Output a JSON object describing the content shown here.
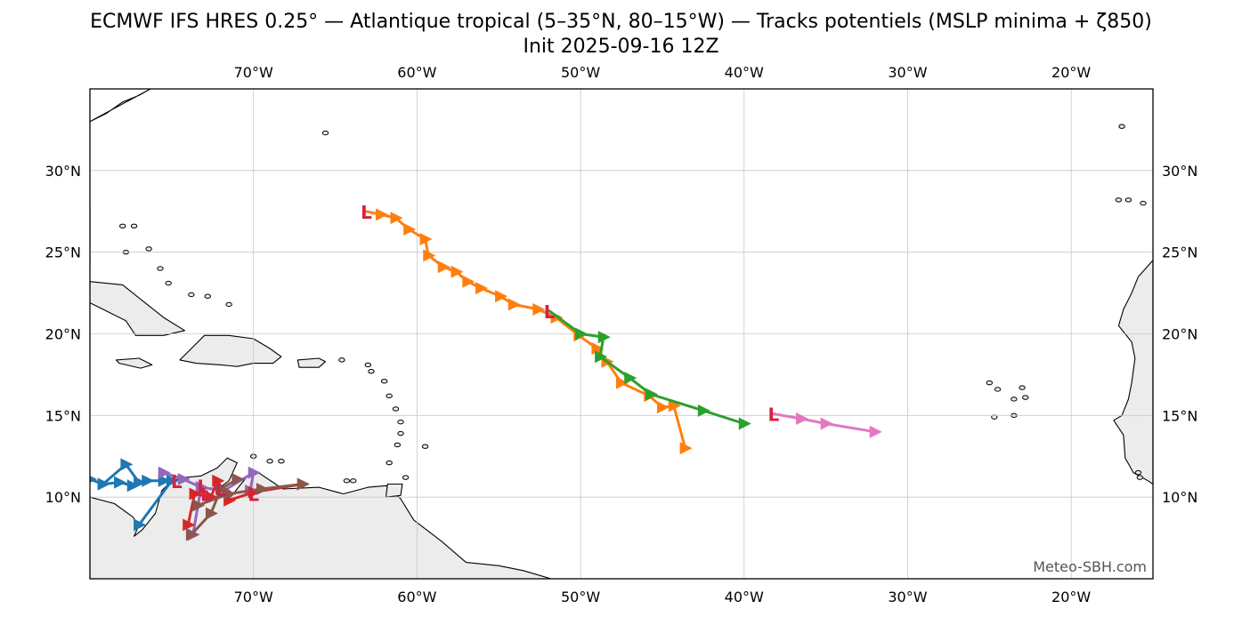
{
  "title_line1": "ECMWF IFS HRES 0.25° — Atlantique tropical (5–35°N, 80–15°W) — Tracks potentiels (MSLP minima + ζ850)",
  "title_line2": "Init 2025-09-16 12Z",
  "watermark": "Meteo-SBH.com",
  "low_marker_label": "L",
  "colors": {
    "background": "#ffffff",
    "land": "#ececec",
    "coast": "#000000",
    "grid": "#c8c8c8",
    "low_marker": "#d62040"
  },
  "map": {
    "lon_range": [
      -80,
      -15
    ],
    "lat_range": [
      5,
      35
    ],
    "lon_ticks": [
      {
        "lon": -70,
        "label": "70°W"
      },
      {
        "lon": -60,
        "label": "60°W"
      },
      {
        "lon": -50,
        "label": "50°W"
      },
      {
        "lon": -40,
        "label": "40°W"
      },
      {
        "lon": -30,
        "label": "30°W"
      },
      {
        "lon": -20,
        "label": "20°W"
      }
    ],
    "lat_ticks": [
      {
        "lat": 30,
        "label": "30°N"
      },
      {
        "lat": 25,
        "label": "25°N"
      },
      {
        "lat": 20,
        "label": "20°N"
      },
      {
        "lat": 15,
        "label": "15°N"
      },
      {
        "lat": 10,
        "label": "10°N"
      }
    ],
    "grid": true
  },
  "tracks": [
    {
      "color": "#ff7f0e",
      "marker": "L-start",
      "points": [
        [
          -63.1,
          27.5
        ],
        [
          -62.2,
          27.3
        ],
        [
          -61.3,
          27.1
        ],
        [
          -60.5,
          26.4
        ],
        [
          -59.5,
          25.8
        ],
        [
          -59.3,
          24.8
        ],
        [
          -58.4,
          24.1
        ],
        [
          -57.6,
          23.8
        ],
        [
          -56.9,
          23.2
        ],
        [
          -56.1,
          22.8
        ],
        [
          -54.9,
          22.3
        ],
        [
          -54.1,
          21.8
        ],
        [
          -52.6,
          21.5
        ],
        [
          -51.5,
          21.0
        ],
        [
          -50.1,
          19.9
        ],
        [
          -49.0,
          19.1
        ],
        [
          -48.4,
          18.3
        ],
        [
          -47.5,
          17.0
        ],
        [
          -45.8,
          16.2
        ],
        [
          -45.0,
          15.5
        ],
        [
          -44.3,
          15.6
        ],
        [
          -43.6,
          13.0
        ]
      ]
    },
    {
      "color": "#2ca02c",
      "marker": "L-start",
      "points": [
        [
          -51.9,
          21.4
        ],
        [
          -50.0,
          20.0
        ],
        [
          -48.6,
          19.8
        ],
        [
          -48.8,
          18.6
        ],
        [
          -47.0,
          17.3
        ],
        [
          -45.7,
          16.3
        ],
        [
          -42.5,
          15.3
        ],
        [
          -40.0,
          14.5
        ]
      ]
    },
    {
      "color": "#e377c2",
      "marker": "L-start",
      "points": [
        [
          -38.2,
          15.1
        ],
        [
          -36.5,
          14.8
        ],
        [
          -35.0,
          14.5
        ],
        [
          -32.0,
          14.0
        ]
      ]
    },
    {
      "color": "#1f77b4",
      "marker": "none",
      "points": [
        [
          -80.0,
          11.1
        ],
        [
          -79.2,
          10.8
        ],
        [
          -78.2,
          10.9
        ],
        [
          -77.4,
          10.7
        ],
        [
          -76.5,
          11.0
        ],
        [
          -75.5,
          11.0
        ],
        [
          -75.0,
          11.0
        ],
        [
          -77.0,
          8.3
        ]
      ]
    },
    {
      "color": "#1f77b4",
      "marker": "none",
      "points": [
        [
          -79.2,
          10.8
        ],
        [
          -77.8,
          12.0
        ],
        [
          -77.0,
          10.9
        ]
      ]
    },
    {
      "color": "#9467bd",
      "marker": "none",
      "points": [
        [
          -75.5,
          11.5
        ],
        [
          -74.3,
          11.1
        ],
        [
          -73.2,
          10.6
        ],
        [
          -71.8,
          10.4
        ],
        [
          -70.0,
          11.5
        ],
        [
          -70.2,
          10.4
        ]
      ]
    },
    {
      "color": "#9467bd",
      "marker": "none",
      "points": [
        [
          -73.2,
          10.6
        ],
        [
          -73.7,
          7.7
        ]
      ]
    },
    {
      "color": "#d62728",
      "marker": "none",
      "points": [
        [
          -74.0,
          8.3
        ],
        [
          -73.6,
          10.2
        ],
        [
          -72.6,
          10.0
        ],
        [
          -72.2,
          11.0
        ],
        [
          -71.5,
          9.8
        ],
        [
          -70.0,
          10.3
        ],
        [
          -67.0,
          10.8
        ]
      ]
    },
    {
      "color": "#8c564b",
      "marker": "none",
      "points": [
        [
          -73.8,
          7.7
        ],
        [
          -72.6,
          9.0
        ],
        [
          -72.0,
          10.5
        ],
        [
          -71.0,
          11.1
        ]
      ]
    },
    {
      "color": "#8c564b",
      "marker": "none",
      "points": [
        [
          -73.4,
          9.5
        ],
        [
          -71.5,
          10.2
        ],
        [
          -69.5,
          10.5
        ],
        [
          -67.0,
          10.8
        ]
      ]
    }
  ],
  "extra_lows": [
    [
      -74.7,
      11.0
    ],
    [
      -73.1,
      10.7
    ],
    [
      -72.0,
      10.5
    ],
    [
      -72.9,
      10.2
    ],
    [
      -70.0,
      10.2
    ]
  ],
  "landmasses": [
    [
      [
        -80,
        33
      ],
      [
        -79,
        33.5
      ],
      [
        -78,
        34.2
      ],
      [
        -77,
        34.6
      ],
      [
        -76.3,
        35
      ]
    ],
    [
      [
        -80,
        24.0
      ],
      [
        -80,
        28.0
      ],
      [
        -80.3,
        28.5
      ],
      [
        -80.1,
        26.0
      ],
      [
        -80.4,
        25.2
      ],
      [
        -80.8,
        25.1
      ],
      [
        -81.2,
        25.7
      ],
      [
        -80,
        24.0
      ]
    ],
    [
      [
        -80,
        23.2
      ],
      [
        -78,
        23.0
      ],
      [
        -76.5,
        21.8
      ],
      [
        -75.5,
        21.0
      ],
      [
        -74.2,
        20.2
      ],
      [
        -75.5,
        19.9
      ],
      [
        -77.2,
        19.9
      ],
      [
        -77.8,
        20.8
      ],
      [
        -79.2,
        21.5
      ],
      [
        -80,
        21.9
      ]
    ],
    [
      [
        -78.4,
        18.4
      ],
      [
        -77.0,
        18.5
      ],
      [
        -76.2,
        18.1
      ],
      [
        -76.9,
        17.9
      ],
      [
        -78.2,
        18.2
      ]
    ],
    [
      [
        -74.5,
        18.4
      ],
      [
        -73.0,
        19.9
      ],
      [
        -72.6,
        19.9
      ],
      [
        -71.5,
        19.9
      ],
      [
        -70.0,
        19.7
      ],
      [
        -69.0,
        19.1
      ],
      [
        -68.3,
        18.6
      ],
      [
        -68.8,
        18.2
      ],
      [
        -70.0,
        18.2
      ],
      [
        -71.0,
        18.0
      ],
      [
        -72.0,
        18.1
      ],
      [
        -73.5,
        18.2
      ],
      [
        -74.5,
        18.4
      ]
    ],
    [
      [
        -67.3,
        18.4
      ],
      [
        -66,
        18.5
      ],
      [
        -65.6,
        18.3
      ],
      [
        -66,
        17.95
      ],
      [
        -67.2,
        17.95
      ]
    ],
    [
      [
        -80,
        10.0
      ],
      [
        -78.5,
        9.6
      ],
      [
        -77.4,
        8.8
      ],
      [
        -77.0,
        8.3
      ],
      [
        -77.3,
        7.6
      ],
      [
        -76.8,
        8.0
      ],
      [
        -76.0,
        9.0
      ],
      [
        -75.6,
        10.4
      ],
      [
        -75.0,
        11.0
      ],
      [
        -74.2,
        11.2
      ],
      [
        -73.2,
        11.3
      ],
      [
        -72.2,
        11.8
      ],
      [
        -71.6,
        12.4
      ],
      [
        -71.0,
        12.1
      ],
      [
        -71.5,
        11.0
      ],
      [
        -71.9,
        10.7
      ],
      [
        -71.4,
        10.0
      ],
      [
        -71.0,
        10.5
      ],
      [
        -70.2,
        11.5
      ],
      [
        -69.7,
        11.5
      ],
      [
        -68.2,
        10.5
      ],
      [
        -66.0,
        10.6
      ],
      [
        -64.5,
        10.2
      ],
      [
        -63.0,
        10.6
      ],
      [
        -61.9,
        10.7
      ],
      [
        -61.0,
        9.9
      ],
      [
        -60.2,
        8.6
      ],
      [
        -58.5,
        7.3
      ],
      [
        -57.0,
        6.0
      ],
      [
        -55.0,
        5.8
      ],
      [
        -53.5,
        5.5
      ],
      [
        -51.8,
        5.0
      ],
      [
        -65,
        5.0
      ],
      [
        -80,
        5.0
      ]
    ],
    [
      [
        -61.9,
        10.0
      ],
      [
        -61.0,
        10.1
      ],
      [
        -60.9,
        10.8
      ],
      [
        -61.8,
        10.8
      ]
    ],
    [
      [
        -15,
        24.5
      ],
      [
        -15.9,
        23.5
      ],
      [
        -16.3,
        22.5
      ],
      [
        -16.8,
        21.5
      ],
      [
        -17.1,
        20.5
      ],
      [
        -16.3,
        19.5
      ],
      [
        -16.1,
        18.5
      ],
      [
        -16.3,
        17.0
      ],
      [
        -16.5,
        16.0
      ],
      [
        -16.9,
        15.0
      ],
      [
        -17.4,
        14.7
      ],
      [
        -16.8,
        13.8
      ],
      [
        -16.7,
        12.4
      ],
      [
        -16.2,
        11.5
      ],
      [
        -15.3,
        11.0
      ],
      [
        -15,
        10.8
      ]
    ]
  ],
  "islands": [
    [
      -65.6,
      32.3
    ],
    [
      -78.0,
      26.6
    ],
    [
      -77.3,
      26.6
    ],
    [
      -77.8,
      25.0
    ],
    [
      -76.4,
      25.2
    ],
    [
      -75.7,
      24.0
    ],
    [
      -75.2,
      23.1
    ],
    [
      -73.8,
      22.4
    ],
    [
      -72.8,
      22.3
    ],
    [
      -71.5,
      21.8
    ],
    [
      -64.6,
      18.4
    ],
    [
      -63.0,
      18.1
    ],
    [
      -62.8,
      17.7
    ],
    [
      -62.0,
      17.1
    ],
    [
      -61.7,
      16.2
    ],
    [
      -61.3,
      15.4
    ],
    [
      -61.0,
      14.6
    ],
    [
      -61.0,
      13.9
    ],
    [
      -61.2,
      13.2
    ],
    [
      -59.5,
      13.1
    ],
    [
      -61.7,
      12.1
    ],
    [
      -60.7,
      11.2
    ],
    [
      -70.0,
      12.5
    ],
    [
      -69.0,
      12.2
    ],
    [
      -68.3,
      12.2
    ],
    [
      -63.9,
      11.0
    ],
    [
      -64.3,
      11.0
    ],
    [
      -25.0,
      17.0
    ],
    [
      -24.5,
      16.6
    ],
    [
      -23.5,
      16.0
    ],
    [
      -23.5,
      15.0
    ],
    [
      -24.7,
      14.9
    ],
    [
      -22.8,
      16.1
    ],
    [
      -23.0,
      16.7
    ],
    [
      -16.9,
      32.7
    ],
    [
      -17.1,
      28.2
    ],
    [
      -16.5,
      28.2
    ],
    [
      -15.6,
      28.0
    ],
    [
      -14.2,
      28.4
    ],
    [
      -13.6,
      28.9
    ],
    [
      -15.8,
      11.2
    ],
    [
      -15.9,
      11.5
    ]
  ]
}
